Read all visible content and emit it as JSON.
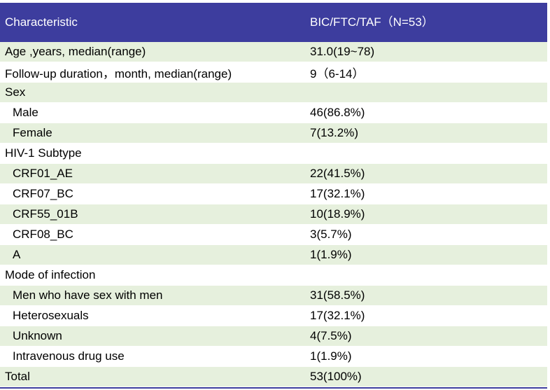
{
  "header": {
    "characteristic": "Characteristic",
    "group": "BIC/FTC/TAF（N=53）"
  },
  "rows": [
    {
      "label": "Age ,years, median(range)",
      "value": "31.0(19~78)"
    },
    {
      "label": "Follow-up duration，month, median(range)",
      "value": "9（6-14）"
    },
    {
      "label": "Sex",
      "value": ""
    },
    {
      "label": "Male",
      "value": "46(86.8%)"
    },
    {
      "label": "Female",
      "value": "7(13.2%)"
    },
    {
      "label": "HIV-1 Subtype",
      "value": ""
    },
    {
      "label": "CRF01_AE",
      "value": "22(41.5%)"
    },
    {
      "label": "CRF07_BC",
      "value": "17(32.1%)"
    },
    {
      "label": "CRF55_01B",
      "value": "10(18.9%)"
    },
    {
      "label": "CRF08_BC",
      "value": "3(5.7%)"
    },
    {
      "label": "A",
      "value": "1(1.9%)"
    },
    {
      "label": "Mode of infection",
      "value": ""
    },
    {
      "label": "Men who have sex with men",
      "value": "31(58.5%)"
    },
    {
      "label": "Heterosexuals",
      "value": "17(32.1%)"
    },
    {
      "label": "Unknown",
      "value": "4(7.5%)"
    },
    {
      "label": "Intravenous drug use",
      "value": "1(1.9%)"
    },
    {
      "label": "Total",
      "value": "53(100%)"
    }
  ],
  "colors": {
    "header_bg": "#3d3d9e",
    "shaded_row": "#e6f0dd"
  }
}
